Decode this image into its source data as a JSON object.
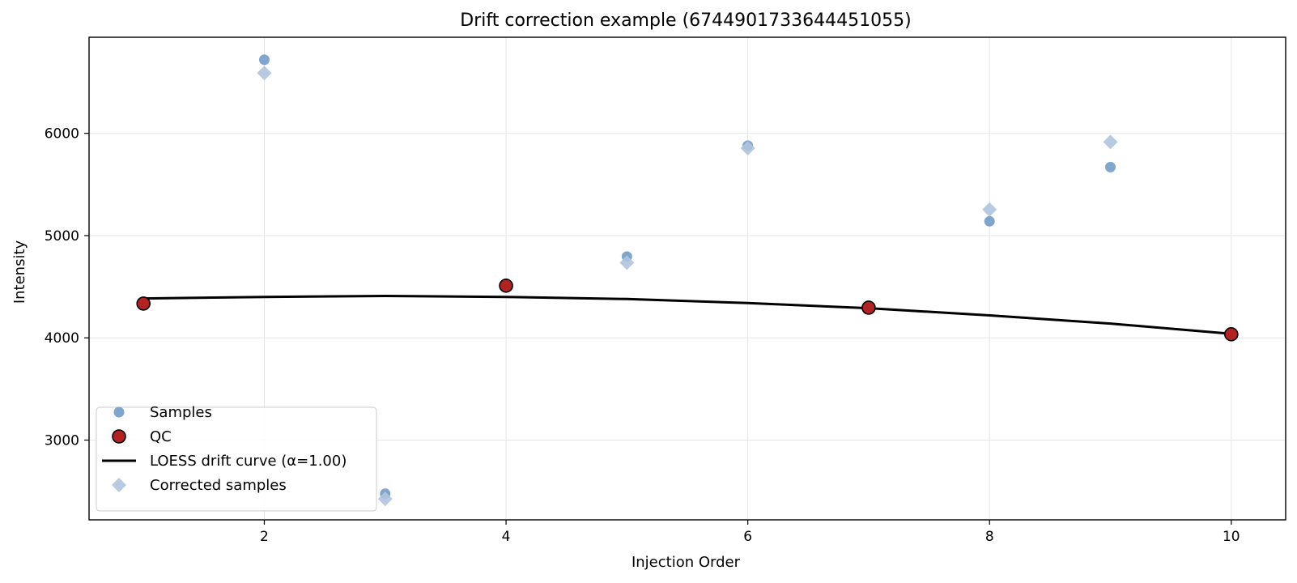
{
  "chart_data": {
    "type": "scatter",
    "title": "Drift correction example (6744901733644451055)",
    "xlabel": "Injection Order",
    "ylabel": "Intensity",
    "xlim": [
      0.55,
      10.45
    ],
    "ylim": [
      2220,
      6940
    ],
    "xticks": [
      2,
      4,
      6,
      8,
      10
    ],
    "yticks": [
      3000,
      4000,
      5000,
      6000
    ],
    "grid": true,
    "legend_position": "lower-left",
    "series": [
      {
        "name": "Samples",
        "kind": "scatter",
        "marker": "circle",
        "color": "#6a96c4",
        "points": [
          [
            2,
            6720
          ],
          [
            3,
            2475
          ],
          [
            5,
            4795
          ],
          [
            6,
            5880
          ],
          [
            8,
            5140
          ],
          [
            9,
            5670
          ]
        ]
      },
      {
        "name": "QC",
        "kind": "scatter",
        "marker": "circle-outlined",
        "color": "#b22222",
        "points": [
          [
            1,
            4335
          ],
          [
            4,
            4510
          ],
          [
            7,
            4295
          ],
          [
            10,
            4035
          ]
        ]
      },
      {
        "name": "LOESS drift curve (α=1.00)",
        "kind": "line",
        "color": "#000000",
        "points": [
          [
            1,
            4385
          ],
          [
            2,
            4400
          ],
          [
            3,
            4410
          ],
          [
            4,
            4400
          ],
          [
            5,
            4380
          ],
          [
            6,
            4340
          ],
          [
            7,
            4290
          ],
          [
            8,
            4220
          ],
          [
            9,
            4140
          ],
          [
            10,
            4040
          ]
        ]
      },
      {
        "name": "Corrected samples",
        "kind": "scatter",
        "marker": "diamond",
        "color": "#b0c4de",
        "points": [
          [
            2,
            6590
          ],
          [
            3,
            2425
          ],
          [
            5,
            4735
          ],
          [
            6,
            5855
          ],
          [
            8,
            5255
          ],
          [
            9,
            5915
          ]
        ]
      }
    ]
  }
}
